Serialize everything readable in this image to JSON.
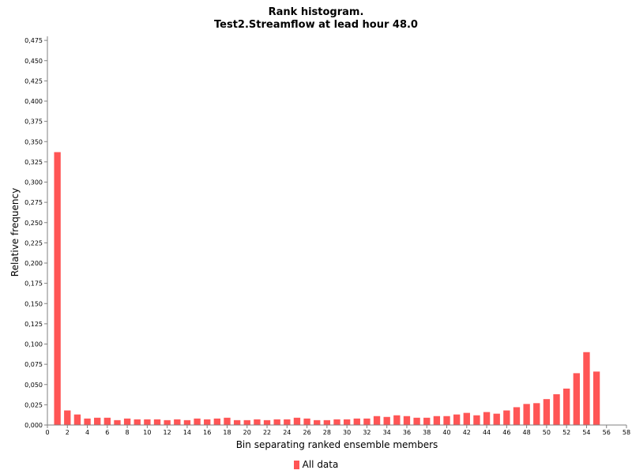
{
  "chart_data": {
    "type": "bar",
    "title_line1": "Rank histogram.",
    "title_line2": "Test2.Streamflow at lead hour 48.0",
    "xlabel": "Bin separating ranked ensemble members",
    "ylabel": "Relative frequency",
    "xlim": [
      0,
      58
    ],
    "ylim": [
      0,
      0.48
    ],
    "x_ticks": [
      "0",
      "2",
      "4",
      "6",
      "8",
      "10",
      "12",
      "14",
      "16",
      "18",
      "20",
      "22",
      "24",
      "26",
      "28",
      "30",
      "32",
      "34",
      "36",
      "38",
      "40",
      "42",
      "44",
      "46",
      "48",
      "50",
      "52",
      "54",
      "56",
      "58"
    ],
    "y_ticks": [
      "0,000",
      "0,025",
      "0,050",
      "0,075",
      "0,100",
      "0,125",
      "0,150",
      "0,175",
      "0,200",
      "0,225",
      "0,250",
      "0,275",
      "0,300",
      "0,325",
      "0,350",
      "0,375",
      "0,400",
      "0,425",
      "0,450",
      "0,475"
    ],
    "grid": false,
    "legend": "bottom",
    "color": "#ff5555",
    "series": [
      {
        "name": "All data",
        "x": [
          1,
          2,
          3,
          4,
          5,
          6,
          7,
          8,
          9,
          10,
          11,
          12,
          13,
          14,
          15,
          16,
          17,
          18,
          19,
          20,
          21,
          22,
          23,
          24,
          25,
          26,
          27,
          28,
          29,
          30,
          31,
          32,
          33,
          34,
          35,
          36,
          37,
          38,
          39,
          40,
          41,
          42,
          43,
          44,
          45,
          46,
          47,
          48,
          49,
          50,
          51,
          52,
          53,
          54,
          55
        ],
        "values": [
          0.337,
          0.018,
          0.013,
          0.008,
          0.009,
          0.009,
          0.006,
          0.008,
          0.007,
          0.007,
          0.007,
          0.006,
          0.007,
          0.006,
          0.008,
          0.007,
          0.008,
          0.009,
          0.006,
          0.006,
          0.007,
          0.006,
          0.007,
          0.007,
          0.009,
          0.008,
          0.006,
          0.006,
          0.007,
          0.007,
          0.008,
          0.008,
          0.011,
          0.01,
          0.012,
          0.011,
          0.009,
          0.009,
          0.011,
          0.011,
          0.013,
          0.015,
          0.012,
          0.016,
          0.014,
          0.018,
          0.022,
          0.026,
          0.027,
          0.032,
          0.038,
          0.045,
          0.064,
          0.09,
          0.066
        ]
      }
    ]
  }
}
